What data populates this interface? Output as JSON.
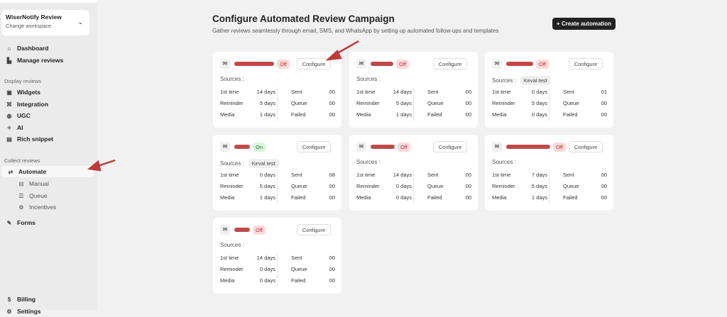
{
  "workspace": {
    "title": "WiserNotify Review",
    "subtitle": "Change workspace"
  },
  "sidebar": {
    "top": [
      {
        "label": "Dashboard",
        "icon": "home-icon"
      },
      {
        "label": "Manage reviews",
        "icon": "file-icon"
      }
    ],
    "display_section": "Display reviews",
    "display": [
      {
        "label": "Widgets",
        "icon": "widgets-icon"
      },
      {
        "label": "Integration",
        "icon": "integration-icon"
      },
      {
        "label": "UGC",
        "icon": "globe-icon"
      },
      {
        "label": "AI",
        "icon": "sparkle-icon"
      },
      {
        "label": "Rich snippet",
        "icon": "snippet-icon"
      }
    ],
    "collect_section": "Collect reviews",
    "automate": "Automate",
    "sub": [
      {
        "label": "Manual",
        "icon": "inbox-icon"
      },
      {
        "label": "Queue",
        "icon": "database-icon"
      },
      {
        "label": "Incentives",
        "icon": "gear-icon"
      }
    ],
    "forms": "Forms",
    "bottom": [
      {
        "label": "Billing"
      },
      {
        "label": "Settings"
      }
    ]
  },
  "header": {
    "title": "Configure Automated Review Campaign",
    "subtitle": "Gather reviews seamlessly through email, SMS, and WhatsApp by setting up automated follow-ups and templates",
    "create": "+ Create automation"
  },
  "labels": {
    "sources": "Sources :",
    "first": "1st time",
    "reminder": "Reminder",
    "media": "Media",
    "sent": "Sent",
    "queue": "Queue",
    "failed": "Failed",
    "configure": "Configure"
  },
  "accent": "#222222",
  "cards": [
    {
      "status": "Off",
      "source": "",
      "first": "14 days",
      "reminder": "5 days",
      "media": "1 days",
      "sent": "00",
      "queue": "00",
      "failed": "00"
    },
    {
      "status": "Off",
      "source": "",
      "first": "14 days",
      "reminder": "5 days",
      "media": "1 days",
      "sent": "00",
      "queue": "00",
      "failed": "00"
    },
    {
      "status": "Off",
      "source": "Keval test",
      "first": "0 days",
      "reminder": "5 days",
      "media": "0 days",
      "sent": "01",
      "queue": "00",
      "failed": "00"
    },
    {
      "status": "On",
      "source": "Keval test",
      "first": "0 days",
      "reminder": "5 days",
      "media": "1 days",
      "sent": "08",
      "queue": "00",
      "failed": "00"
    },
    {
      "status": "Off",
      "source": "",
      "first": "14 days",
      "reminder": "0 days",
      "media": "0 days",
      "sent": "00",
      "queue": "00",
      "failed": "00"
    },
    {
      "status": "Off",
      "source": "",
      "first": "7 days",
      "reminder": "5 days",
      "media": "1 days",
      "sent": "00",
      "queue": "00",
      "failed": "00"
    },
    {
      "status": "Off",
      "source": "",
      "first": "14 days",
      "reminder": "0 days",
      "media": "0 days",
      "sent": "00",
      "queue": "00",
      "failed": "00"
    }
  ]
}
